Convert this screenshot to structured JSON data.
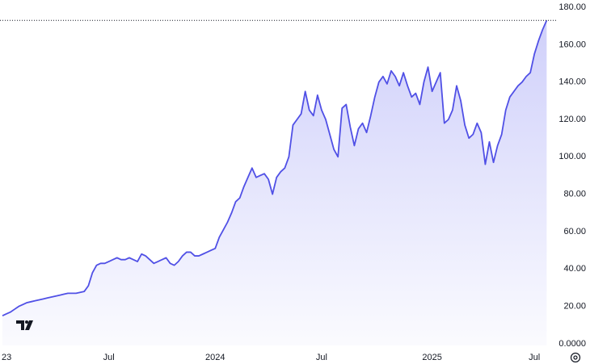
{
  "chart_data": {
    "type": "area",
    "categories": [
      "23",
      null,
      null,
      null,
      null,
      null,
      null,
      null,
      null,
      null,
      null,
      null,
      null,
      null,
      null,
      null,
      null,
      null,
      null,
      null,
      null,
      null,
      null,
      null,
      null,
      null,
      "Jul",
      null,
      null,
      null,
      null,
      null,
      null,
      null,
      null,
      null,
      null,
      null,
      null,
      null,
      null,
      null,
      null,
      null,
      null,
      null,
      null,
      null,
      null,
      null,
      null,
      null,
      "2024",
      null,
      null,
      null,
      null,
      null,
      null,
      null,
      null,
      null,
      null,
      null,
      null,
      null,
      null,
      null,
      null,
      null,
      null,
      null,
      null,
      null,
      null,
      null,
      null,
      null,
      "Jul",
      null,
      null,
      null,
      null,
      null,
      null,
      null,
      null,
      null,
      null,
      null,
      null,
      null,
      null,
      null,
      null,
      null,
      null,
      null,
      null,
      null,
      null,
      null,
      null,
      null,
      null,
      "2025",
      null,
      null,
      null,
      null,
      null,
      null,
      null,
      null,
      null,
      null,
      null,
      null,
      null,
      null,
      null,
      null,
      null,
      null,
      null,
      null,
      null,
      null,
      null,
      null,
      "Jul",
      null,
      null,
      null
    ],
    "values": [
      15,
      16,
      17,
      18.5,
      20,
      21,
      22,
      22.5,
      23,
      23.5,
      24,
      24.5,
      25,
      25.5,
      26,
      26.5,
      27,
      27,
      27,
      27.5,
      28,
      31,
      38,
      42,
      43,
      43,
      44,
      45,
      46,
      45,
      45,
      46,
      45,
      44,
      48,
      47,
      45,
      43,
      44,
      45,
      46,
      43,
      42,
      44,
      47,
      49,
      49,
      47,
      47,
      48,
      49,
      50,
      51,
      57,
      61,
      65,
      70,
      76,
      78,
      84,
      89,
      94,
      89,
      90,
      91,
      88,
      80,
      89,
      92,
      94,
      100,
      117,
      120,
      123,
      135,
      125,
      122,
      133,
      125,
      120,
      112,
      104,
      100,
      126,
      128,
      116,
      106,
      115,
      118,
      113,
      122,
      132,
      140,
      143,
      139,
      146,
      143,
      138,
      145,
      138,
      132,
      134,
      128,
      140,
      148,
      135,
      140,
      145,
      118,
      120,
      125,
      138,
      130,
      117,
      110,
      112,
      118,
      113,
      96,
      108,
      97,
      106,
      112,
      125,
      132,
      135,
      138,
      140,
      143,
      145,
      155,
      162,
      168,
      173
    ],
    "color": "#5050e6",
    "ylim": [
      -0.9,
      183.9
    ],
    "yticks": [
      {
        "value": 0,
        "label": "0.0000"
      },
      {
        "value": 20,
        "label": "20.00"
      },
      {
        "value": 40,
        "label": "40.00"
      },
      {
        "value": 60,
        "label": "60.00"
      },
      {
        "value": 80,
        "label": "80.00"
      },
      {
        "value": 100,
        "label": "100.00"
      },
      {
        "value": 120,
        "label": "120.00"
      },
      {
        "value": 140,
        "label": "140.00"
      },
      {
        "value": 160,
        "label": "160.00"
      },
      {
        "value": 180,
        "label": "180.00"
      }
    ],
    "grid": false
  }
}
